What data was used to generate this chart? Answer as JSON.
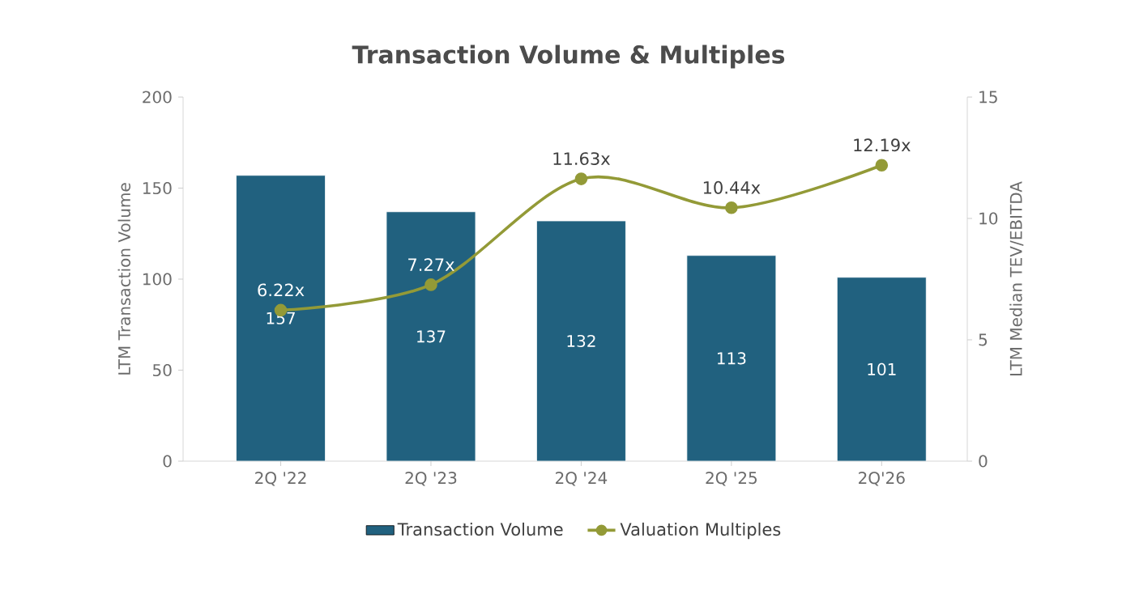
{
  "chart_data": {
    "type": "bar",
    "title": "Transaction Volume & Multiples",
    "ylabel": "LTM Transaction Volume",
    "y2label": "LTM Median TEV/EBITDA",
    "categories": [
      "2Q '22",
      "2Q '23",
      "2Q '24",
      "2Q '25",
      "2Q'26"
    ],
    "series": [
      {
        "name": "Transaction Volume",
        "color": "#21617f",
        "values": [
          157,
          137,
          132,
          113,
          101
        ],
        "value_labels": [
          "157",
          "137",
          "132",
          "113",
          "101"
        ]
      },
      {
        "name": "Valuation Multiples",
        "type": "line",
        "axis": "y2",
        "color": "#939a37",
        "values": [
          6.22,
          7.27,
          11.63,
          10.44,
          12.19
        ],
        "value_labels": [
          "6.22x",
          "7.27x",
          "11.63x",
          "10.44x",
          "12.19x"
        ]
      }
    ],
    "ylim": [
      0,
      200
    ],
    "yticks": [
      0,
      50,
      100,
      150,
      200
    ],
    "y2lim": [
      0,
      15
    ],
    "y2ticks": [
      0,
      5,
      10,
      15
    ],
    "legend": "bottom",
    "marker": "circle",
    "line_style": "solid"
  }
}
